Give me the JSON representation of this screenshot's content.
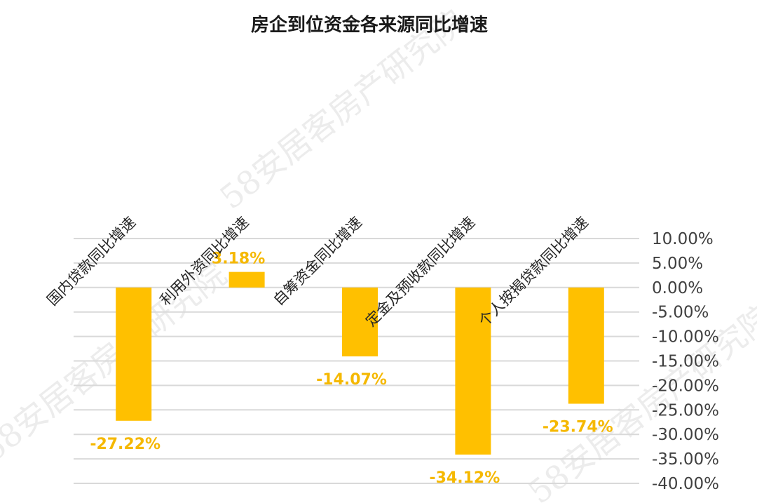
{
  "chart_data": {
    "type": "bar",
    "title": "房企到位资金各来源同比增速",
    "categories": [
      "国内贷款同比增速",
      "利用外资同比增速",
      "自筹资金同比增速",
      "定金及预收款同比增速",
      "个人按揭贷款同比增速"
    ],
    "values": [
      -27.22,
      3.18,
      -14.07,
      -34.12,
      -23.74
    ],
    "value_labels": [
      "-27.22%",
      "3.18%",
      "-14.07%",
      "-34.12%",
      "-23.74%"
    ],
    "y_ticks": [
      "10.00%",
      "5.00%",
      "0.00%",
      "-5.00%",
      "-10.00%",
      "-15.00%",
      "-20.00%",
      "-25.00%",
      "-30.00%",
      "-35.00%",
      "-40.00%"
    ],
    "ylim": [
      -40,
      10
    ],
    "y_axis_position": "right",
    "grid": true,
    "legend": "none",
    "colors": {
      "bar": "#ffc000",
      "label": "#f5b800",
      "grid": "#d9d9d9"
    },
    "watermarks": [
      "58安居客房产研究院",
      "58安居客房产研究院",
      "58安居客房产研究院"
    ]
  }
}
